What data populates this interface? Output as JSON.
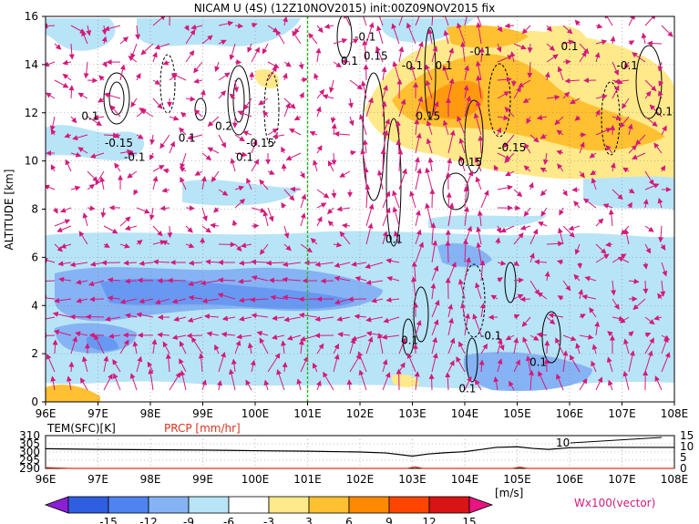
{
  "chart_data": {
    "type": "heatmap",
    "title": "NICAM U (4S) (12Z10NOV2015) init:00Z09NOV2015 fix",
    "ylabel": "ALTITUDE [km]",
    "xlim": [
      96,
      108
    ],
    "ylim": [
      0,
      16
    ],
    "x_ticks": [
      "96E",
      "97E",
      "98E",
      "99E",
      "100E",
      "101E",
      "102E",
      "103E",
      "104E",
      "105E",
      "106E",
      "107E",
      "108E"
    ],
    "y_ticks": [
      "0",
      "2",
      "4",
      "6",
      "8",
      "10",
      "12",
      "14",
      "16"
    ],
    "grid": true,
    "dashed_marker_x": 101,
    "contour_labels": [
      {
        "text": "0.1",
        "x": 96.85,
        "y": 11.7
      },
      {
        "text": "-0.15",
        "x": 97.4,
        "y": 10.6
      },
      {
        "text": "-0.1",
        "x": 97.7,
        "y": 10.0
      },
      {
        "text": "0.1",
        "x": 98.7,
        "y": 10.8
      },
      {
        "text": "0.2",
        "x": 99.4,
        "y": 11.3
      },
      {
        "text": "-0.15",
        "x": 100.1,
        "y": 10.6
      },
      {
        "text": "0.1",
        "x": 99.8,
        "y": 10.0
      },
      {
        "text": "0.1",
        "x": 101.8,
        "y": 14.0
      },
      {
        "text": "0.15",
        "x": 102.3,
        "y": 14.2
      },
      {
        "text": "-0.1",
        "x": 102.1,
        "y": 15.0
      },
      {
        "text": "-0.1",
        "x": 103.0,
        "y": 13.8
      },
      {
        "text": "0.1",
        "x": 103.6,
        "y": 13.8
      },
      {
        "text": "-0.1",
        "x": 104.3,
        "y": 14.4
      },
      {
        "text": "0.15",
        "x": 103.3,
        "y": 11.7
      },
      {
        "text": "-0.15",
        "x": 104.9,
        "y": 10.4
      },
      {
        "text": "0.15",
        "x": 104.1,
        "y": 9.8
      },
      {
        "text": "0.1",
        "x": 106.0,
        "y": 14.6
      },
      {
        "text": "-0.1",
        "x": 107.1,
        "y": 13.8
      },
      {
        "text": "0.1",
        "x": 107.8,
        "y": 11.9
      },
      {
        "text": "0.1",
        "x": 102.65,
        "y": 6.6
      },
      {
        "text": "0.1",
        "x": 102.95,
        "y": 2.4
      },
      {
        "text": "-0.1",
        "x": 104.5,
        "y": 2.6
      },
      {
        "text": "0.1",
        "x": 105.4,
        "y": 1.5
      },
      {
        "text": "0.1",
        "x": 104.05,
        "y": 0.4
      }
    ],
    "bottom_panel": {
      "left_label": "TEM(SFC)[K]",
      "right_label": "PRCP [mm/hr]",
      "left_ticks": [
        "310",
        "305",
        "300",
        "295",
        "290"
      ],
      "right_ticks": [
        "15",
        "10",
        "5",
        "0"
      ],
      "annotation": "10",
      "temperature_x": [
        96,
        97,
        98,
        99,
        100,
        101,
        102,
        102.5,
        103,
        103.3,
        103.6,
        104,
        104.3,
        104.6,
        105,
        105.3,
        105.6,
        106,
        106.5,
        107,
        108
      ],
      "temperature_y": [
        302,
        301.6,
        301.4,
        301.2,
        300.8,
        300.5,
        300,
        299.4,
        297.5,
        298.8,
        299.5,
        300.2,
        301.5,
        302.8,
        303.2,
        302.2,
        301.6,
        302.6,
        302.8,
        302.8,
        302.8
      ],
      "precip_x": [
        96,
        96.5,
        97,
        102.9,
        103.05,
        103.2,
        104.9,
        105.05,
        105.2,
        108
      ],
      "precip_y": [
        0.4,
        0,
        0,
        0,
        0.7,
        0,
        0,
        0.6,
        0,
        0
      ]
    },
    "colorbar": {
      "ticks": [
        "-15",
        "-12",
        "-9",
        "-6",
        "-3",
        "3",
        "6",
        "9",
        "12",
        "15"
      ],
      "unit": "[m/s]",
      "colors": [
        "#8a1fd6",
        "#2f5fe0",
        "#4f84f0",
        "#86b3f4",
        "#b8e4f7",
        "#ffffff",
        "#ffe98a",
        "#ffc032",
        "#ff8a00",
        "#ff4500",
        "#d81414",
        "#b00c0c"
      ],
      "vector_label": "Wx100(vector)"
    }
  }
}
